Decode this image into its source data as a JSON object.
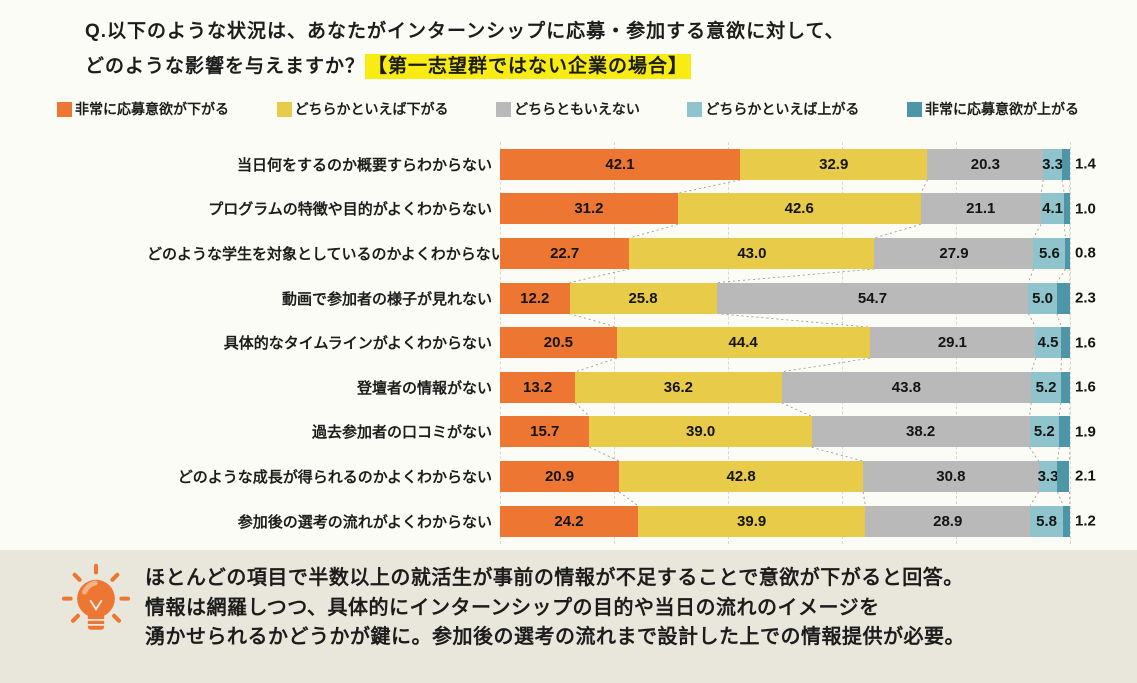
{
  "title": {
    "line1": "Q.以下のような状況は、あなたがインターンシップに応募・参加する意欲に対して、",
    "line2_prefix": "どのような影響を与えますか？",
    "line2_highlight": "【第一志望群ではない企業の場合】",
    "highlight_color": "#F8EC12"
  },
  "legend": [
    {
      "label": "非常に応募意欲が下がる",
      "color": "#ED7632"
    },
    {
      "label": "どちらかといえば下がる",
      "color": "#E9CB4A"
    },
    {
      "label": "どちらともいえない",
      "color": "#B9B9B9"
    },
    {
      "label": "どちらかといえば上がる",
      "color": "#8FC4CC"
    },
    {
      "label": "非常に応募意欲が上がる",
      "color": "#4D96A8"
    }
  ],
  "chart_data": {
    "type": "bar",
    "orientation": "horizontal",
    "stacked": true,
    "unit": "%",
    "xlim": [
      0,
      100
    ],
    "grid": "vertical-dashed-every-20pct",
    "legend_position": "top",
    "categories": [
      "当日何をするのか概要すらわからない",
      "プログラムの特徴や目的がよくわからない",
      "どのような学生を対象としているのかよくわからない",
      "動画で参加者の様子が見れない",
      "具体的なタイムラインがよくわからない",
      "登壇者の情報がない",
      "過去参加者の口コミがない",
      "どのような成長が得られるのかよくわからない",
      "参加後の選考の流れがよくわからない"
    ],
    "series": [
      {
        "name": "非常に応募意欲が下がる",
        "color": "#ED7632",
        "values": [
          42.1,
          31.2,
          22.7,
          12.2,
          20.5,
          13.2,
          15.7,
          20.9,
          24.2
        ]
      },
      {
        "name": "どちらかといえば下がる",
        "color": "#E9CB4A",
        "values": [
          32.9,
          42.6,
          43.0,
          25.8,
          44.4,
          36.2,
          39.0,
          42.8,
          39.9
        ]
      },
      {
        "name": "どちらともいえない",
        "color": "#B9B9B9",
        "values": [
          20.3,
          21.1,
          27.9,
          54.7,
          29.1,
          43.8,
          38.2,
          30.8,
          28.9
        ]
      },
      {
        "name": "どちらかといえば上がる",
        "color": "#8FC4CC",
        "values": [
          3.3,
          4.1,
          5.6,
          5.0,
          4.5,
          5.2,
          5.2,
          3.3,
          5.8
        ]
      },
      {
        "name": "非常に応募意欲が上がる",
        "color": "#4D96A8",
        "values": [
          1.4,
          1.0,
          0.8,
          2.3,
          1.6,
          1.6,
          1.9,
          2.1,
          1.2
        ]
      }
    ]
  },
  "insight": {
    "icon": "lightbulb",
    "icon_color": "#ED7632",
    "panel_color": "#E9E7DB",
    "lines": [
      "ほとんどの項目で半数以上の就活生が事前の情報が不足することで意欲が下がると回答。",
      "情報は網羅しつつ、具体的にインターンシップの目的や当日の流れのイメージを",
      "湧かせられるかどうかが鍵に。参加後の選考の流れまで設計した上での情報提供が必要。"
    ]
  }
}
